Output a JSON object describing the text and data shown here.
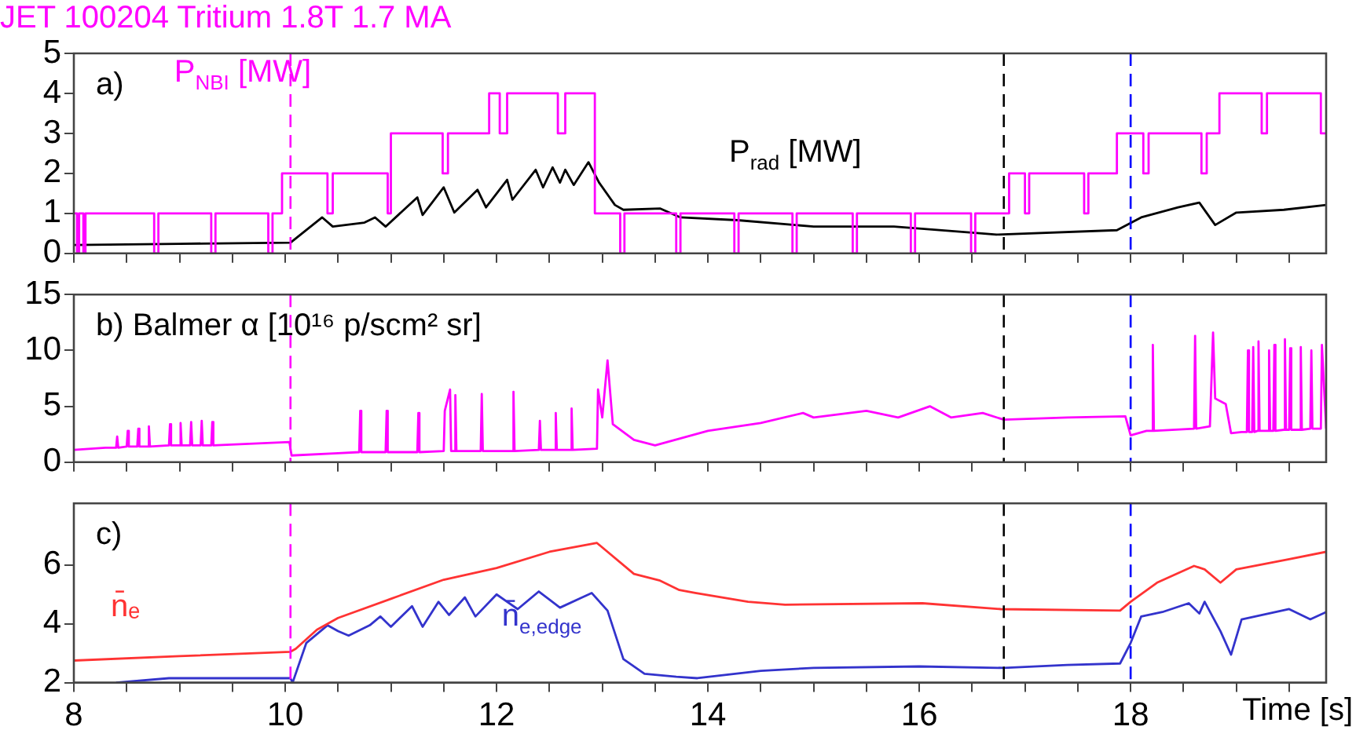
{
  "chart_data": [
    {
      "type": "line",
      "title": "JET 100204 Tritium 1.8T 1.7 MA",
      "annotations": [
        "a)"
      ],
      "tick_labels": "y",
      "xlim": [
        8,
        19.85
      ],
      "ylim": [
        0,
        5
      ],
      "yticks": [
        0,
        1,
        2,
        3,
        4,
        5
      ],
      "xticks": [
        8,
        {
          "value": 8.5,
          "label": null
        },
        {
          "value": 9,
          "label": null
        },
        {
          "value": 9.5,
          "label": null
        },
        10,
        {
          "value": 10.5,
          "label": null
        },
        {
          "value": 11,
          "label": null
        },
        {
          "value": 11.5,
          "label": null
        },
        12,
        {
          "value": 12.5,
          "label": null
        },
        {
          "value": 13,
          "label": null
        },
        {
          "value": 13.5,
          "label": null
        },
        14,
        {
          "value": 14.5,
          "label": null
        },
        {
          "value": 15,
          "label": null
        },
        {
          "value": 15.5,
          "label": null
        },
        16,
        {
          "value": 16.5,
          "label": null
        },
        {
          "value": 17,
          "label": null
        },
        {
          "value": 17.5,
          "label": null
        },
        18,
        {
          "value": 18.5,
          "label": null
        },
        {
          "value": 19,
          "label": null
        },
        {
          "value": 19.5,
          "label": null
        }
      ],
      "ref_lines": [
        {
          "axis": "x",
          "value": 10.05,
          "color": "#ff00ff",
          "line_style": "dashed"
        },
        {
          "axis": "x",
          "value": 16.8,
          "color": "#000000",
          "line_style": "dashed"
        },
        {
          "axis": "x",
          "value": 18.0,
          "color": "#0000ff",
          "line_style": "dashed"
        }
      ],
      "series": [
        {
          "type": "step",
          "name": "P$_{NBI}$ [MW]",
          "color": "#ff00ff",
          "x": [
            8.0,
            8.03,
            8.05,
            8.09,
            8.11,
            8.76,
            8.8,
            9.3,
            9.34,
            9.84,
            9.88,
            9.97,
            10.4,
            10.45,
            10.97,
            11.0,
            11.49,
            11.54,
            11.93,
            12.03,
            12.1,
            12.58,
            12.65,
            12.93,
            13.17,
            13.21,
            13.7,
            13.74,
            14.25,
            14.29,
            14.8,
            14.84,
            15.37,
            15.41,
            15.92,
            15.96,
            16.49,
            16.53,
            16.85,
            17.0,
            17.04,
            17.56,
            17.6,
            17.87,
            18.12,
            18.17,
            18.67,
            18.72,
            18.84,
            19.24,
            19.29,
            19.8,
            19.85
          ],
          "values": [
            1,
            0,
            1,
            0,
            1,
            0,
            1,
            0,
            1,
            0,
            1,
            2,
            1,
            2,
            1,
            3,
            2,
            3,
            4,
            3,
            4,
            3,
            4,
            1,
            0,
            1,
            0,
            1,
            0,
            1,
            0,
            1,
            0,
            1,
            0,
            1,
            0,
            1,
            2,
            1,
            2,
            1,
            2,
            3,
            2,
            3,
            2,
            3,
            4,
            3,
            4,
            3,
            3
          ]
        },
        {
          "type": "line",
          "name": "P$_{rad}$ [MW]",
          "color": "#000000",
          "x": [
            8.0,
            9.0,
            10.05,
            10.35,
            10.45,
            10.75,
            10.85,
            10.95,
            11.25,
            11.3,
            11.5,
            11.6,
            11.82,
            11.9,
            12.1,
            12.15,
            12.37,
            12.44,
            12.53,
            12.6,
            12.65,
            12.73,
            12.87,
            12.97,
            13.12,
            13.2,
            13.55,
            13.74,
            14.28,
            15.0,
            15.76,
            16.5,
            16.73,
            17.87,
            18.1,
            18.45,
            18.65,
            18.8,
            19.0,
            19.45,
            19.85
          ],
          "values": [
            0.21,
            0.24,
            0.27,
            0.9,
            0.67,
            0.77,
            0.9,
            0.67,
            1.4,
            0.96,
            1.65,
            1.02,
            1.59,
            1.15,
            1.84,
            1.34,
            2.09,
            1.65,
            2.15,
            1.77,
            2.09,
            1.71,
            2.28,
            1.77,
            1.21,
            1.09,
            1.12,
            0.9,
            0.83,
            0.67,
            0.67,
            0.52,
            0.47,
            0.58,
            0.9,
            1.15,
            1.27,
            0.71,
            1.02,
            1.09,
            1.21
          ]
        }
      ]
    },
    {
      "type": "line",
      "annotations": [
        "b) Balmer α [10¹⁶ p/scm² sr]"
      ],
      "tick_labels": "y",
      "xlim": [
        8,
        19.85
      ],
      "ylim": [
        0,
        15
      ],
      "yticks": [
        0,
        5,
        10,
        15
      ],
      "xticks": [
        8,
        {
          "value": 8.5,
          "label": null
        },
        {
          "value": 9,
          "label": null
        },
        {
          "value": 9.5,
          "label": null
        },
        10,
        {
          "value": 10.5,
          "label": null
        },
        {
          "value": 11,
          "label": null
        },
        {
          "value": 11.5,
          "label": null
        },
        12,
        {
          "value": 12.5,
          "label": null
        },
        {
          "value": 13,
          "label": null
        },
        {
          "value": 13.5,
          "label": null
        },
        14,
        {
          "value": 14.5,
          "label": null
        },
        {
          "value": 15,
          "label": null
        },
        {
          "value": 15.5,
          "label": null
        },
        16,
        {
          "value": 16.5,
          "label": null
        },
        {
          "value": 17,
          "label": null
        },
        {
          "value": 17.5,
          "label": null
        },
        18,
        {
          "value": 18.5,
          "label": null
        },
        {
          "value": 19,
          "label": null
        },
        {
          "value": 19.5,
          "label": null
        }
      ],
      "ref_lines": [
        {
          "axis": "x",
          "value": 10.05,
          "color": "#ff00ff",
          "line_style": "dashed"
        },
        {
          "axis": "x",
          "value": 16.8,
          "color": "#000000",
          "line_style": "dashed"
        },
        {
          "axis": "x",
          "value": 18.0,
          "color": "#0000ff",
          "line_style": "dashed"
        }
      ],
      "series": [
        {
          "color": "#ff00ff",
          "x": [
            8.0,
            8.3,
            8.4,
            8.41,
            8.42,
            8.5,
            8.51,
            8.52,
            8.6,
            8.61,
            8.62,
            8.7,
            8.71,
            8.72,
            8.9,
            8.91,
            8.92,
            9.0,
            9.01,
            9.02,
            9.1,
            9.11,
            9.12,
            9.2,
            9.21,
            9.22,
            9.3,
            9.31,
            9.32,
            10.04,
            10.06,
            10.5,
            10.7,
            10.71,
            10.72,
            10.95,
            10.96,
            10.97,
            11.25,
            11.26,
            11.27,
            11.5,
            11.51,
            11.56,
            11.57,
            11.6,
            11.61,
            11.62,
            11.85,
            11.86,
            11.87,
            12.15,
            12.16,
            12.17,
            12.4,
            12.41,
            12.42,
            12.55,
            12.56,
            12.57,
            12.7,
            12.71,
            12.72,
            12.95,
            12.96,
            13.0,
            13.05,
            13.1,
            13.3,
            13.5,
            14.0,
            14.5,
            14.9,
            15.0,
            15.5,
            15.8,
            16.1,
            16.3,
            16.6,
            16.8,
            17.4,
            17.95,
            18.0,
            18.15,
            18.2,
            18.21,
            18.22,
            18.6,
            18.61,
            18.62,
            18.75,
            18.78,
            18.8,
            18.9,
            18.95,
            19.05,
            19.1,
            19.11,
            19.12,
            19.15,
            19.16,
            19.17,
            19.2,
            19.21,
            19.22,
            19.3,
            19.31,
            19.32,
            19.35,
            19.36,
            19.37,
            19.45,
            19.46,
            19.47,
            19.5,
            19.51,
            19.52,
            19.6,
            19.61,
            19.62,
            19.7,
            19.71,
            19.72,
            19.8,
            19.81,
            19.85
          ],
          "values": [
            1.1,
            1.3,
            1.3,
            2.3,
            1.3,
            1.4,
            2.8,
            1.4,
            1.4,
            3.0,
            1.4,
            1.4,
            3.2,
            1.4,
            1.5,
            3.4,
            1.5,
            1.5,
            3.5,
            1.5,
            1.5,
            3.6,
            1.5,
            1.5,
            3.7,
            1.5,
            1.5,
            3.6,
            1.5,
            1.8,
            0.6,
            0.8,
            0.9,
            4.6,
            0.9,
            0.9,
            4.6,
            0.9,
            0.9,
            4.4,
            0.9,
            1.0,
            4.6,
            6.5,
            1.0,
            1.0,
            6.0,
            1.0,
            1.0,
            6.1,
            1.0,
            1.0,
            6.3,
            1.0,
            1.1,
            3.7,
            1.1,
            1.1,
            4.4,
            1.1,
            1.1,
            4.8,
            1.1,
            1.2,
            6.5,
            4.0,
            9.1,
            3.4,
            2.0,
            1.5,
            2.8,
            3.5,
            4.4,
            4.0,
            4.6,
            4.0,
            5.0,
            4.0,
            4.4,
            3.8,
            4.0,
            4.1,
            2.4,
            2.8,
            2.8,
            10.5,
            2.8,
            3.0,
            11.3,
            3.0,
            3.2,
            11.6,
            5.7,
            5.2,
            2.6,
            2.7,
            2.7,
            10.0,
            2.7,
            2.7,
            10.3,
            2.7,
            2.8,
            10.8,
            2.8,
            2.8,
            10.0,
            2.8,
            2.8,
            10.5,
            2.8,
            2.9,
            11.0,
            2.9,
            2.9,
            10.2,
            2.9,
            2.9,
            10.3,
            2.9,
            3.0,
            10.0,
            3.0,
            3.0,
            10.5,
            3.0
          ]
        }
      ]
    },
    {
      "type": "line",
      "annotations": [
        "c)"
      ],
      "xlabel": "Time [s]",
      "xlim": [
        8,
        19.85
      ],
      "ylim": [
        2,
        8.1
      ],
      "yticks": [
        2,
        4,
        6
      ],
      "xticks": [
        8,
        {
          "value": 8.5,
          "label": null
        },
        {
          "value": 9,
          "label": null
        },
        {
          "value": 9.5,
          "label": null
        },
        10,
        {
          "value": 10.5,
          "label": null
        },
        {
          "value": 11,
          "label": null
        },
        {
          "value": 11.5,
          "label": null
        },
        12,
        {
          "value": 12.5,
          "label": null
        },
        {
          "value": 13,
          "label": null
        },
        {
          "value": 13.5,
          "label": null
        },
        14,
        {
          "value": 14.5,
          "label": null
        },
        {
          "value": 15,
          "label": null
        },
        {
          "value": 15.5,
          "label": null
        },
        16,
        {
          "value": 16.5,
          "label": null
        },
        {
          "value": 17,
          "label": null
        },
        {
          "value": 17.5,
          "label": null
        },
        18,
        {
          "value": 18.5,
          "label": null
        },
        {
          "value": 19,
          "label": null
        },
        {
          "value": 19.5,
          "label": null
        }
      ],
      "ref_lines": [
        {
          "axis": "x",
          "value": 10.05,
          "color": "#ff00ff",
          "line_style": "dashed"
        },
        {
          "axis": "x",
          "value": 16.8,
          "color": "#000000",
          "line_style": "dashed"
        },
        {
          "axis": "x",
          "value": 18.0,
          "color": "#0000ff",
          "line_style": "dashed"
        }
      ],
      "series": [
        {
          "name": "n̄ₑ",
          "color": "#ff3333",
          "x": [
            8.0,
            9.0,
            10.05,
            10.1,
            10.3,
            10.5,
            11.0,
            11.5,
            12.0,
            12.5,
            12.95,
            13.3,
            13.54,
            13.73,
            13.88,
            14.38,
            14.73,
            16.03,
            16.77,
            17.9,
            18.0,
            18.25,
            18.6,
            18.7,
            18.85,
            19.0,
            19.5,
            19.85
          ],
          "values": [
            2.75,
            2.9,
            3.05,
            3.15,
            3.8,
            4.2,
            4.85,
            5.5,
            5.9,
            6.45,
            6.75,
            5.7,
            5.48,
            5.15,
            5.05,
            4.75,
            4.65,
            4.7,
            4.5,
            4.45,
            4.75,
            5.4,
            5.97,
            5.85,
            5.4,
            5.85,
            6.2,
            6.45
          ]
        },
        {
          "name": "n̄$_{e,edge}$",
          "color": "#3333cc",
          "x": [
            8.4,
            8.9,
            10.05,
            10.07,
            10.2,
            10.4,
            10.5,
            10.6,
            10.8,
            10.9,
            11.0,
            11.2,
            11.3,
            11.45,
            11.55,
            11.7,
            11.8,
            12.0,
            12.2,
            12.4,
            12.6,
            12.9,
            13.05,
            13.2,
            13.4,
            13.7,
            13.9,
            14.5,
            15.0,
            16.0,
            16.8,
            17.4,
            17.9,
            18.0,
            18.1,
            18.3,
            18.55,
            18.65,
            18.7,
            18.85,
            18.95,
            19.05,
            19.5,
            19.7,
            19.85
          ],
          "values": [
            2.0,
            2.15,
            2.15,
            2.0,
            3.35,
            3.95,
            3.75,
            3.6,
            3.95,
            4.25,
            3.9,
            4.6,
            3.9,
            4.75,
            4.3,
            4.9,
            4.25,
            5.0,
            4.5,
            5.1,
            4.55,
            5.05,
            4.45,
            2.8,
            2.3,
            2.2,
            2.15,
            2.4,
            2.5,
            2.55,
            2.5,
            2.6,
            2.65,
            3.35,
            4.25,
            4.4,
            4.7,
            4.35,
            4.75,
            3.75,
            2.95,
            4.15,
            4.5,
            4.15,
            4.4
          ]
        }
      ]
    }
  ]
}
